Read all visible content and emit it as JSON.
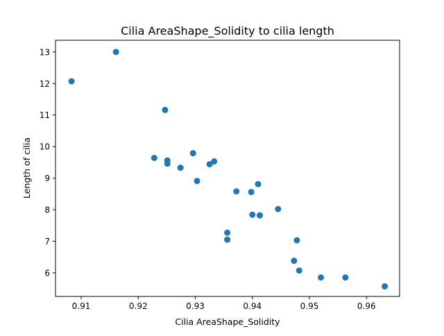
{
  "chart_data": {
    "type": "scatter",
    "title": "Cilia AreaShape_Solidity to cilia length",
    "xlabel": "Cilia AreaShape_Solidity",
    "ylabel": "Length of cilia",
    "xlim": [
      0.9055,
      0.9658
    ],
    "ylim": [
      5.25,
      13.37
    ],
    "xticks": [
      0.91,
      0.92,
      0.93,
      0.94,
      0.95,
      0.96
    ],
    "xtick_labels": [
      "0.91",
      "0.92",
      "0.93",
      "0.94",
      "0.95",
      "0.96"
    ],
    "yticks": [
      6,
      7,
      8,
      9,
      10,
      11,
      12,
      13
    ],
    "ytick_labels": [
      "6",
      "7",
      "8",
      "9",
      "10",
      "11",
      "12",
      "13"
    ],
    "grid": false,
    "marker_color": "#1f77b4",
    "points": [
      {
        "x": 0.9083,
        "y": 12.07
      },
      {
        "x": 0.9161,
        "y": 13.0
      },
      {
        "x": 0.9247,
        "y": 11.16
      },
      {
        "x": 0.9228,
        "y": 9.64
      },
      {
        "x": 0.9251,
        "y": 9.56
      },
      {
        "x": 0.9251,
        "y": 9.46
      },
      {
        "x": 0.9274,
        "y": 9.33
      },
      {
        "x": 0.9296,
        "y": 9.79
      },
      {
        "x": 0.9303,
        "y": 8.91
      },
      {
        "x": 0.9325,
        "y": 9.44
      },
      {
        "x": 0.9333,
        "y": 9.53
      },
      {
        "x": 0.9356,
        "y": 7.27
      },
      {
        "x": 0.9356,
        "y": 7.05
      },
      {
        "x": 0.9372,
        "y": 8.58
      },
      {
        "x": 0.9398,
        "y": 8.56
      },
      {
        "x": 0.94,
        "y": 7.84
      },
      {
        "x": 0.941,
        "y": 8.81
      },
      {
        "x": 0.9413,
        "y": 7.82
      },
      {
        "x": 0.9445,
        "y": 8.02
      },
      {
        "x": 0.9473,
        "y": 6.38
      },
      {
        "x": 0.9478,
        "y": 7.03
      },
      {
        "x": 0.9482,
        "y": 6.07
      },
      {
        "x": 0.952,
        "y": 5.85
      },
      {
        "x": 0.9563,
        "y": 5.85
      },
      {
        "x": 0.9632,
        "y": 5.57
      }
    ]
  }
}
